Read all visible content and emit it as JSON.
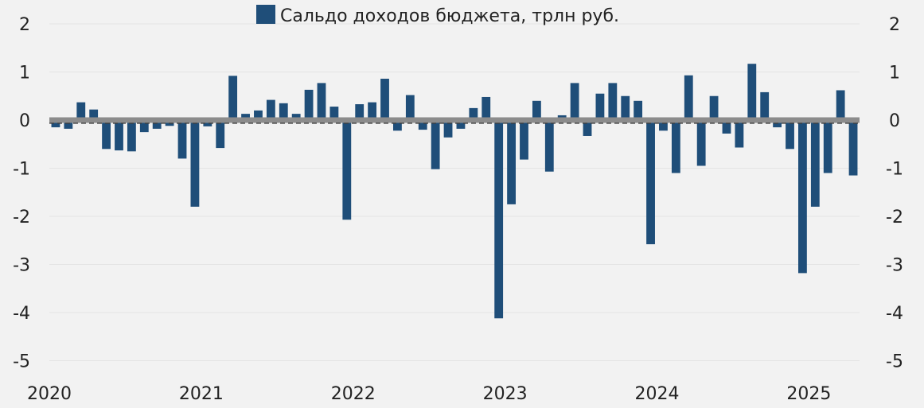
{
  "chart_data": {
    "type": "bar",
    "legend": {
      "label": "Сальдо доходов бюджета, трлн руб.",
      "position": "top-center"
    },
    "series": [
      {
        "name": "Сальдо доходов бюджета, трлн руб.",
        "color": "#1f4e79",
        "values": [
          -0.15,
          -0.18,
          0.37,
          0.22,
          -0.6,
          -0.63,
          -0.65,
          -0.25,
          -0.18,
          -0.12,
          -0.8,
          -1.8,
          -0.13,
          -0.58,
          0.92,
          0.13,
          0.2,
          0.42,
          0.35,
          0.13,
          0.63,
          0.77,
          0.28,
          -2.07,
          0.33,
          0.37,
          0.86,
          -0.22,
          0.52,
          -0.2,
          -1.02,
          -0.36,
          -0.18,
          0.25,
          0.48,
          -4.12,
          -1.75,
          -0.82,
          0.4,
          -1.07,
          0.1,
          0.77,
          -0.33,
          0.55,
          0.77,
          0.5,
          0.4,
          -2.58,
          -0.22,
          -1.1,
          0.93,
          -0.95,
          0.5,
          -0.28,
          -0.57,
          1.17,
          0.58,
          -0.15,
          -0.6,
          -3.18,
          -1.8,
          -1.1,
          0.62,
          -1.15
        ]
      }
    ],
    "xaxis": {
      "ticks": [
        "2020",
        "2021",
        "2022",
        "2023",
        "2024",
        "2025"
      ],
      "start_year": 2020,
      "months_per_year": 12
    },
    "y_left": {
      "min": -5,
      "max": 2,
      "ticks": [
        "2",
        "1",
        "0",
        "-1",
        "-2",
        "-3",
        "-4",
        "-5"
      ]
    },
    "y_right": {
      "min": -5,
      "max": 2,
      "ticks": [
        "2",
        "1",
        "0",
        "-1",
        "-2",
        "-3",
        "-4",
        "-5"
      ]
    },
    "zero_line_color": "#8c8c8c",
    "grid": true
  }
}
